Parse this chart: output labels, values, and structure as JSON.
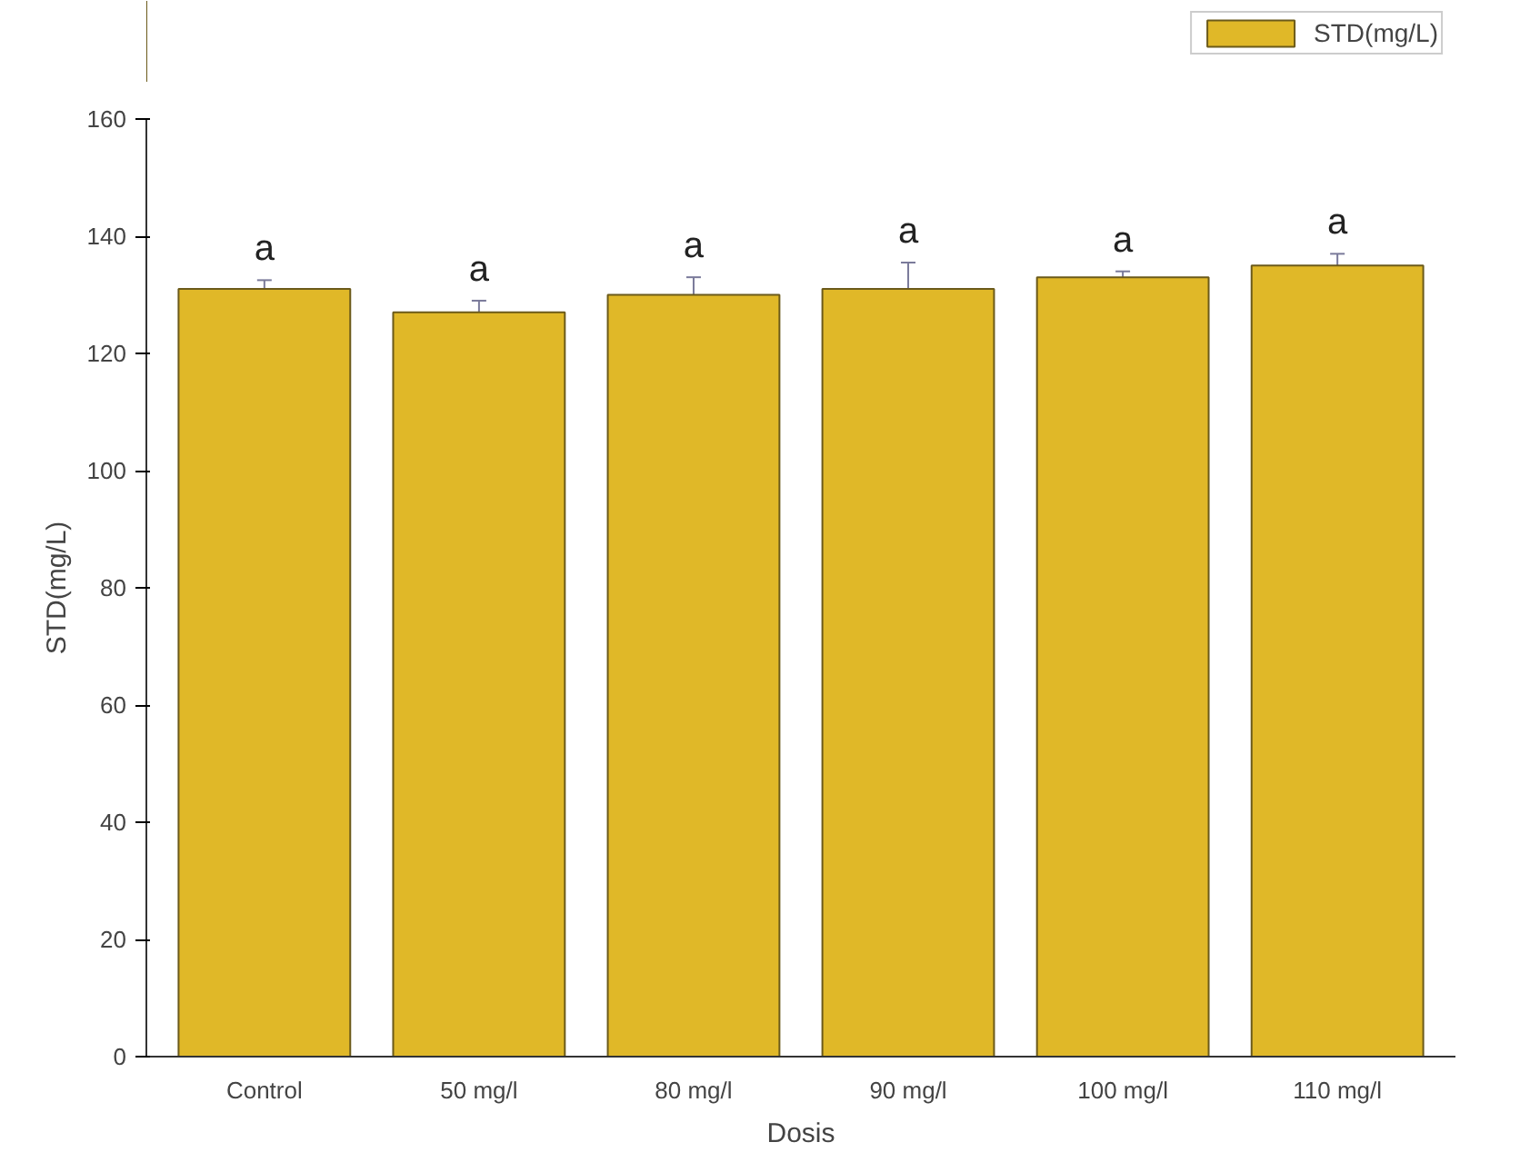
{
  "chart_data": {
    "type": "bar",
    "xlabel": "Dosis",
    "ylabel": "STD(mg/L)",
    "categories": [
      "Control",
      "50 mg/l",
      "80 mg/l",
      "90 mg/l",
      "100 mg/l",
      "110 mg/l"
    ],
    "series": [
      {
        "name": "STD(mg/L)",
        "color": "#e0b828",
        "values": [
          131,
          127,
          130,
          131,
          133,
          135
        ],
        "errors": [
          1.5,
          2,
          3,
          4.5,
          1,
          2
        ]
      }
    ],
    "ylim": [
      0,
      160
    ],
    "yticks": [
      0,
      20,
      40,
      60,
      80,
      100,
      120,
      140,
      160
    ],
    "annotations": [
      "a",
      "a",
      "a",
      "a",
      "a",
      "a"
    ],
    "legend": "top right",
    "grid": false
  }
}
